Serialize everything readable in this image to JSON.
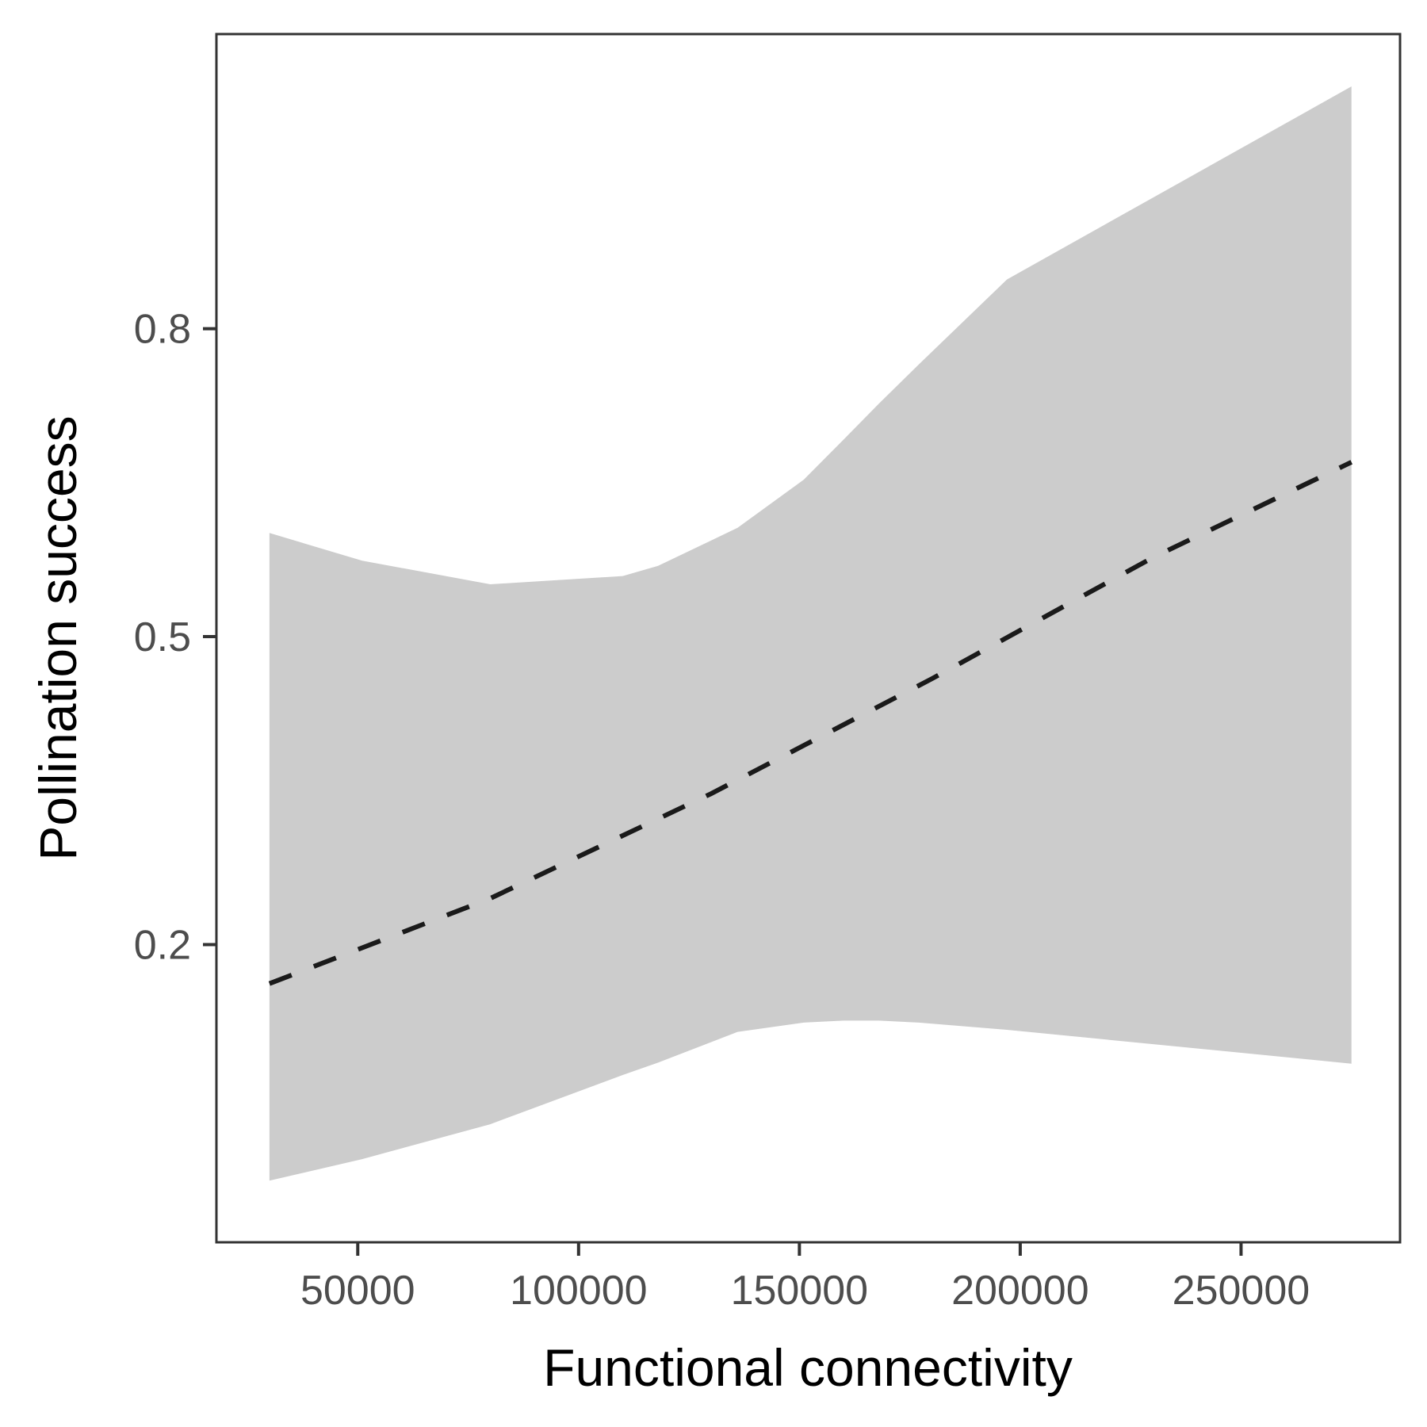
{
  "chart_data": {
    "type": "line",
    "title": "",
    "xlabel": "Functional connectivity",
    "ylabel": "Pollination success",
    "xlim": [
      18000,
      286000
    ],
    "ylim": [
      -0.09,
      1.087
    ],
    "x_ticks": [
      50000,
      100000,
      150000,
      200000,
      250000
    ],
    "x_tick_labels": [
      "50000",
      "100000",
      "150000",
      "200000",
      "250000"
    ],
    "y_ticks": [
      0.2,
      0.5,
      0.8
    ],
    "y_tick_labels": [
      "0.2",
      "0.5",
      "0.8"
    ],
    "grid": false,
    "legend": "none",
    "series": [
      {
        "kind": "fitted-line",
        "line_style": "dashed",
        "x": [
          30000,
          80000,
          130000,
          180000,
          230000,
          275000
        ],
        "y": [
          0.162,
          0.245,
          0.347,
          0.459,
          0.577,
          0.67
        ]
      },
      {
        "kind": "confidence-band",
        "x": [
          30000,
          51000,
          80000,
          110000,
          118000,
          136000,
          151000,
          160000,
          168000,
          177000,
          197000,
          275000
        ],
        "upper": [
          0.601,
          0.574,
          0.551,
          0.559,
          0.569,
          0.606,
          0.653,
          0.692,
          0.727,
          0.765,
          0.848,
          1.036
        ],
        "lower": [
          -0.03,
          -0.009,
          0.025,
          0.073,
          0.085,
          0.115,
          0.124,
          0.126,
          0.126,
          0.124,
          0.117,
          0.084
        ]
      }
    ],
    "colors": {
      "band": "#cccccc",
      "line": "#1a1a1a",
      "panel_border": "#333333",
      "tick_label": "#4d4d4d",
      "axis_title": "#000000"
    }
  }
}
